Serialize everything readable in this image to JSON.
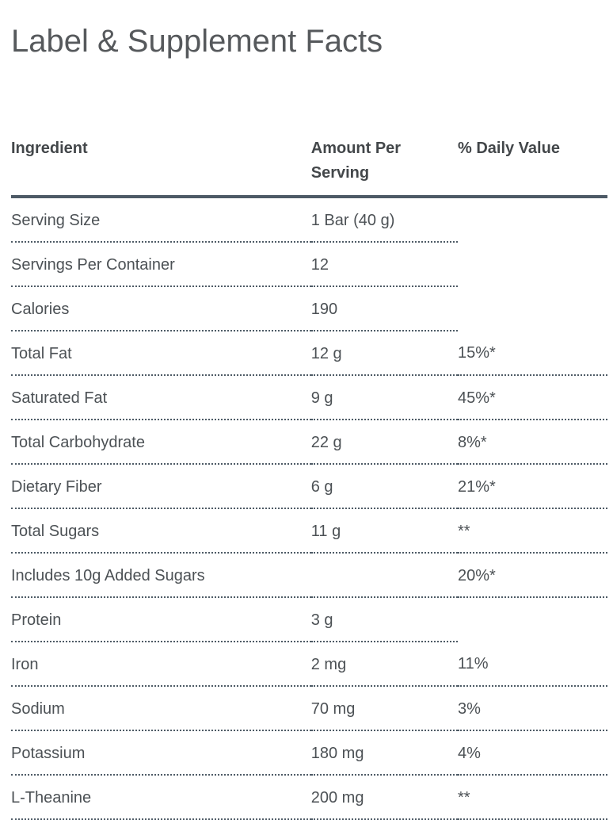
{
  "page": {
    "title": "Label & Supplement Facts"
  },
  "table": {
    "columns": [
      {
        "label": "Ingredient"
      },
      {
        "label": "Amount Per Serving"
      },
      {
        "label": "% Daily Value"
      }
    ],
    "rows": [
      {
        "ingredient": "Serving Size",
        "amount": "1 Bar (40 g)",
        "daily_value": ""
      },
      {
        "ingredient": "Servings Per Container",
        "amount": "12",
        "daily_value": ""
      },
      {
        "ingredient": "Calories",
        "amount": "190",
        "daily_value": ""
      },
      {
        "ingredient": "Total Fat",
        "amount": "12 g",
        "daily_value": "15%*"
      },
      {
        "ingredient": "Saturated Fat",
        "amount": "9 g",
        "daily_value": "45%*"
      },
      {
        "ingredient": "Total Carbohydrate",
        "amount": "22 g",
        "daily_value": "8%*"
      },
      {
        "ingredient": "Dietary Fiber",
        "amount": "6 g",
        "daily_value": "21%*"
      },
      {
        "ingredient": "Total Sugars",
        "amount": "11 g",
        "daily_value": "**"
      },
      {
        "ingredient": "Includes 10g Added Sugars",
        "amount": "",
        "daily_value": "20%*"
      },
      {
        "ingredient": "Protein",
        "amount": "3 g",
        "daily_value": ""
      },
      {
        "ingredient": "Iron",
        "amount": "2 mg",
        "daily_value": "11%"
      },
      {
        "ingredient": "Sodium",
        "amount": "70 mg",
        "daily_value": "3%"
      },
      {
        "ingredient": "Potassium",
        "amount": "180 mg",
        "daily_value": "4%"
      },
      {
        "ingredient": "L-Theanine",
        "amount": "200 mg",
        "daily_value": "**"
      }
    ]
  },
  "colors": {
    "background": "#ffffff",
    "title_text": "#56595c",
    "header_text": "#43474a",
    "body_text": "#4c5155",
    "rule_line": "#4d5a66"
  }
}
